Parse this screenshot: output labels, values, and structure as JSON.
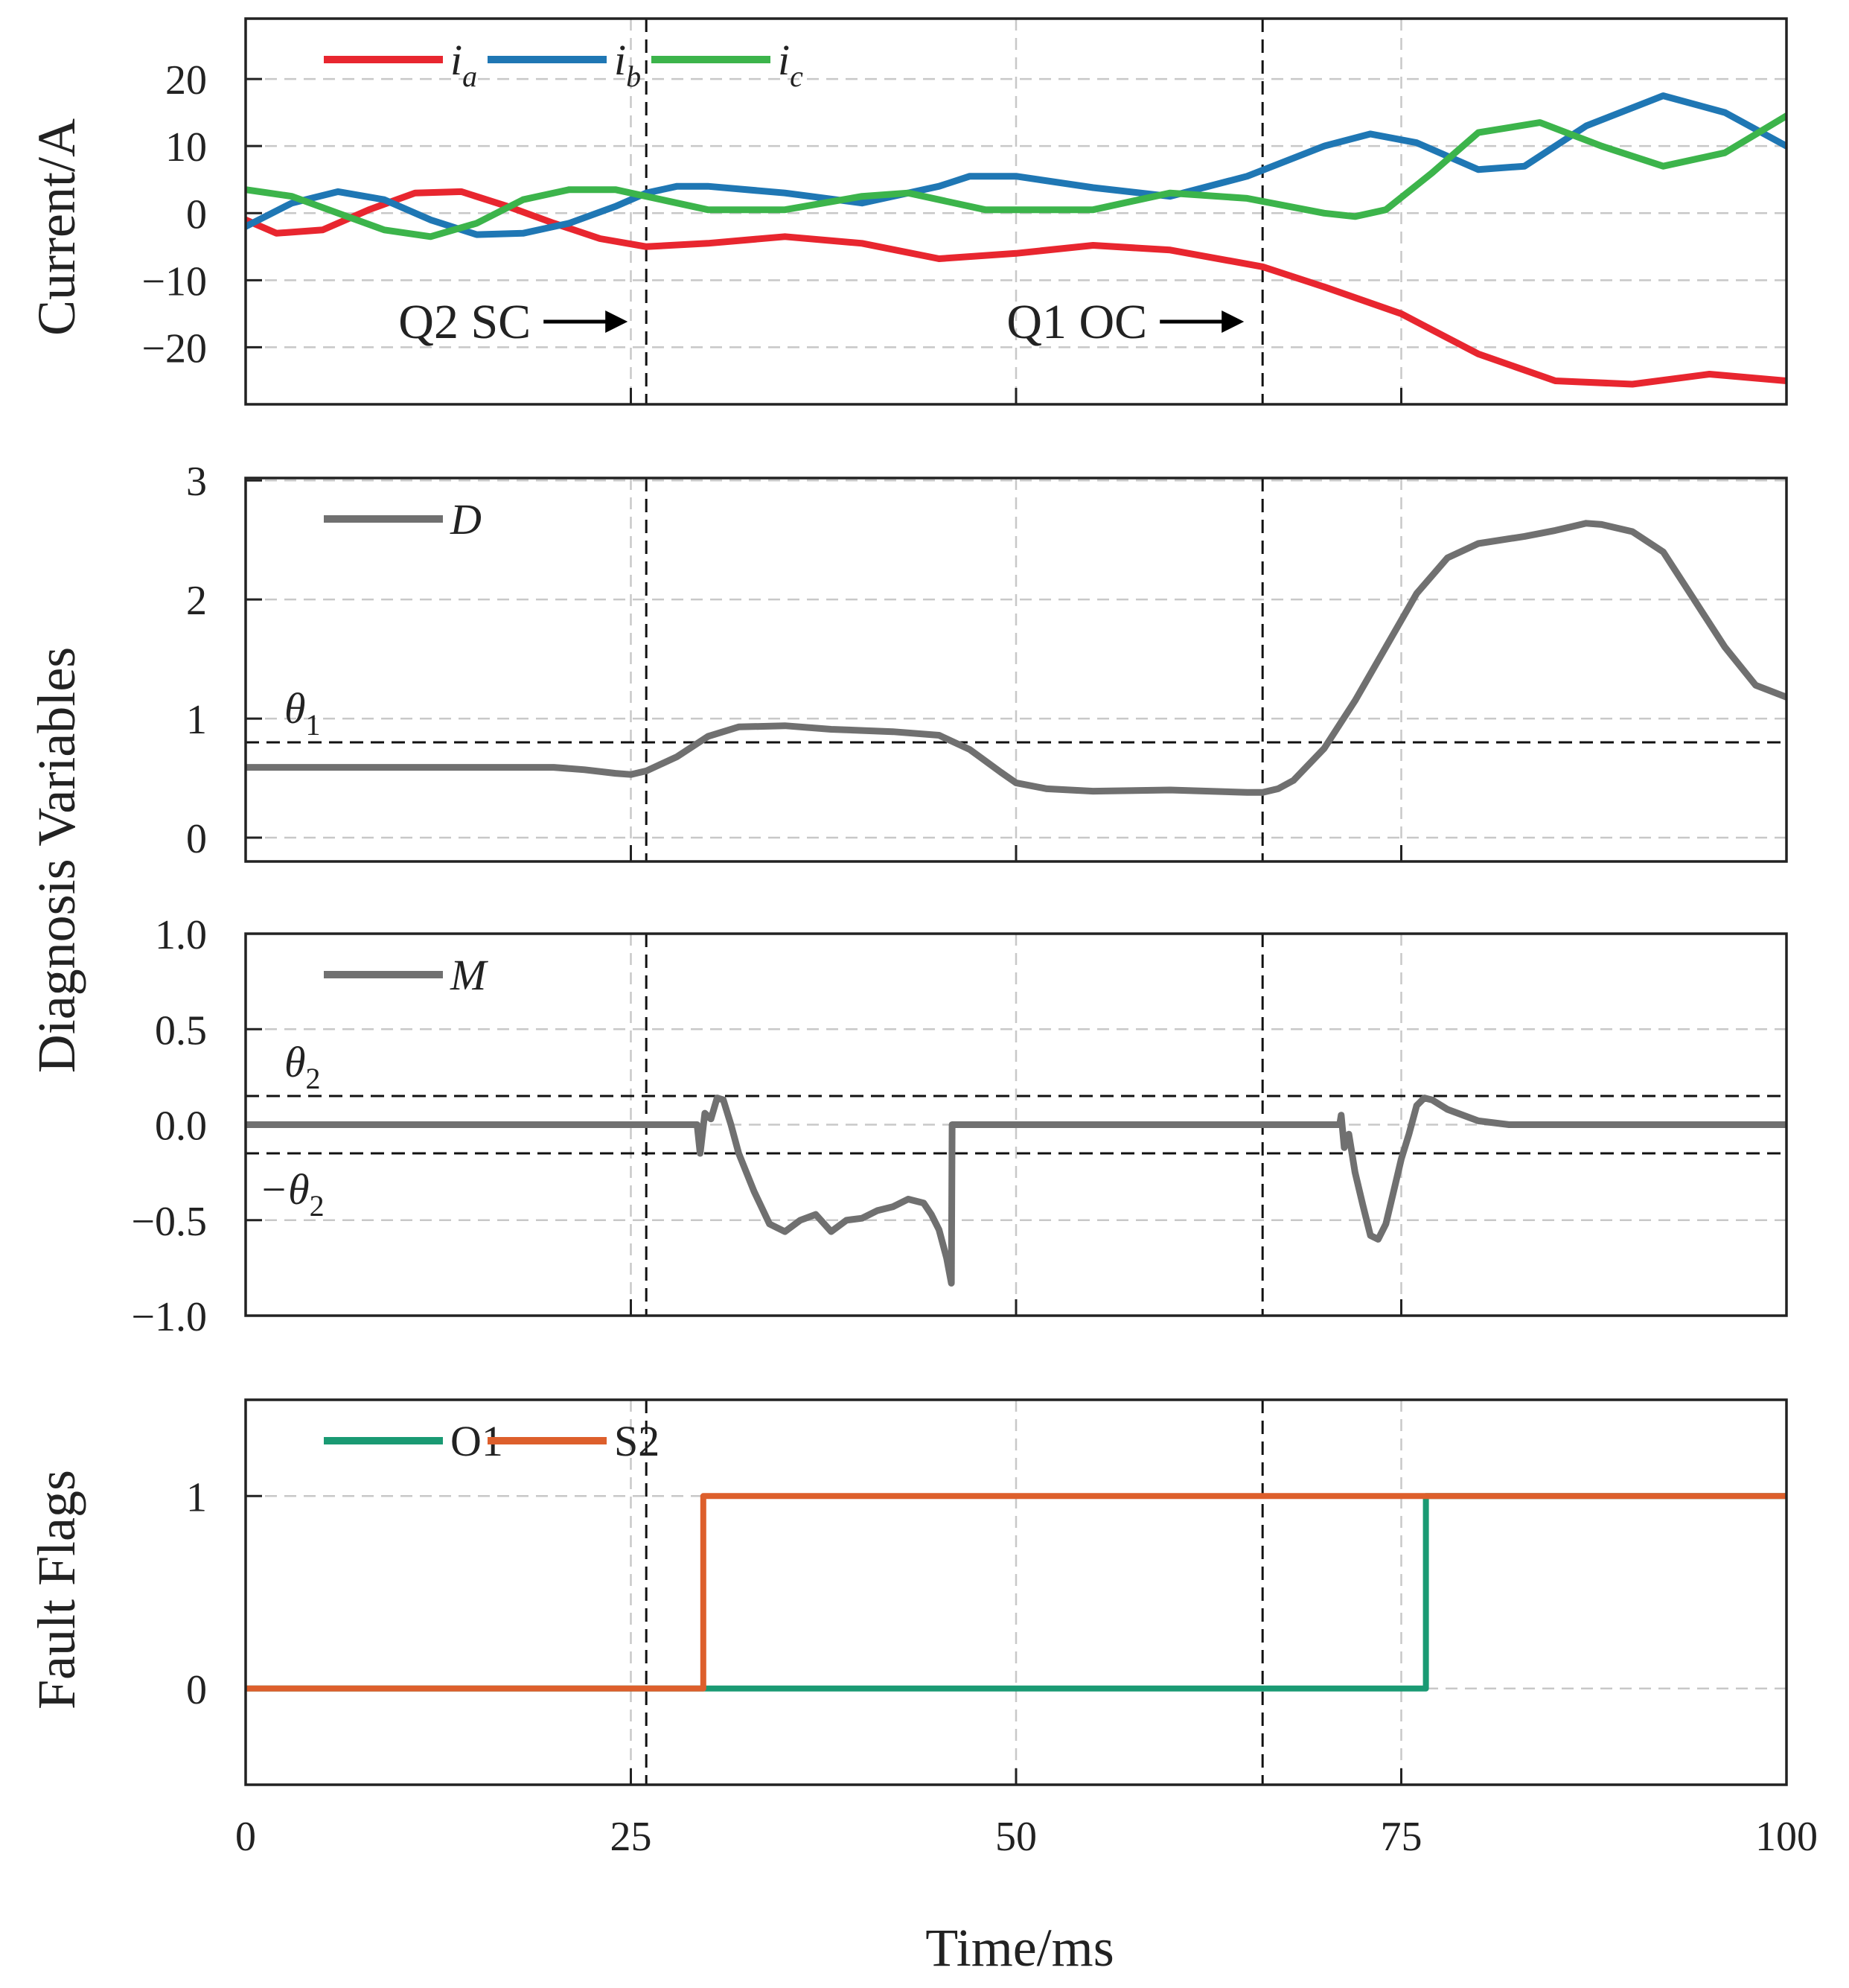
{
  "chart_data": [
    {
      "type": "line",
      "id": "current",
      "ylabel": "Current/A",
      "ylim": [
        -28.5,
        29
      ],
      "yticks": [
        20,
        10,
        0,
        -10,
        -20
      ],
      "ytick_labels": [
        "20",
        "10",
        "0",
        "−10",
        "−20"
      ],
      "series": [
        {
          "name": "i",
          "sub": "a",
          "color": "#e8262f",
          "x": [
            0,
            2,
            5,
            8,
            11,
            14,
            17,
            20,
            23,
            26,
            30,
            35,
            40,
            45,
            50,
            55,
            60,
            66,
            70,
            75,
            80,
            85,
            90,
            95,
            100
          ],
          "y": [
            -1,
            -3,
            -2.5,
            0.5,
            3,
            3.2,
            1,
            -1.5,
            -3.8,
            -5,
            -4.5,
            -3.5,
            -4.5,
            -6.8,
            -6,
            -4.8,
            -5.5,
            -8,
            -11,
            -15,
            -21,
            -25,
            -25.5,
            -24,
            -25
          ]
        },
        {
          "name": "i",
          "sub": "b",
          "color": "#1f77b4",
          "x": [
            0,
            3,
            6,
            9,
            12,
            15,
            18,
            21,
            24,
            26,
            28,
            30,
            35,
            40,
            45,
            47,
            50,
            55,
            60,
            65,
            70,
            73,
            76,
            80,
            83,
            87,
            92,
            96,
            100
          ],
          "y": [
            -2,
            1.5,
            3.2,
            2,
            -1,
            -3.2,
            -3,
            -1.5,
            1,
            3,
            4,
            4,
            3,
            1.5,
            4,
            5.5,
            5.5,
            3.8,
            2.5,
            5.5,
            10,
            11.8,
            10.5,
            6.5,
            7,
            13,
            17.5,
            15,
            10
          ]
        },
        {
          "name": "i",
          "sub": "c",
          "color": "#3cb44b",
          "x": [
            0,
            3,
            6,
            9,
            12,
            15,
            18,
            21,
            24,
            27,
            30,
            35,
            40,
            43,
            48,
            55,
            60,
            65,
            70,
            72,
            74,
            77,
            80,
            84,
            88,
            92,
            96,
            100
          ],
          "y": [
            3.5,
            2.5,
            0,
            -2.5,
            -3.5,
            -1.5,
            2,
            3.5,
            3.5,
            2,
            0.5,
            0.5,
            2.5,
            3,
            0.5,
            0.5,
            3,
            2.2,
            0,
            -0.5,
            0.5,
            6,
            12,
            13.5,
            10,
            7,
            9,
            14.5
          ]
        }
      ]
    },
    {
      "type": "line",
      "id": "d-variable",
      "ylim": [
        -0.2,
        3.02
      ],
      "yticks": [
        3,
        2,
        1,
        0
      ],
      "ytick_labels": [
        "3",
        "2",
        "1",
        "0"
      ],
      "threshold": {
        "value": 0.8,
        "label": "θ",
        "sub": "1"
      },
      "series": [
        {
          "name": "D",
          "color": "#707070",
          "x": [
            0,
            10,
            15,
            20,
            22,
            24,
            25,
            26,
            28,
            30,
            32,
            35,
            38,
            42,
            45,
            47,
            49,
            50,
            52,
            55,
            60,
            65,
            66,
            67,
            68,
            70,
            72,
            74,
            76,
            78,
            80,
            83,
            85,
            86,
            87,
            88,
            90,
            92,
            94,
            96,
            98,
            100
          ],
          "y": [
            0.59,
            0.59,
            0.59,
            0.59,
            0.57,
            0.54,
            0.53,
            0.56,
            0.68,
            0.85,
            0.93,
            0.94,
            0.91,
            0.89,
            0.86,
            0.74,
            0.55,
            0.46,
            0.41,
            0.39,
            0.4,
            0.38,
            0.38,
            0.41,
            0.48,
            0.75,
            1.15,
            1.6,
            2.05,
            2.35,
            2.47,
            2.53,
            2.58,
            2.61,
            2.64,
            2.63,
            2.57,
            2.4,
            2.0,
            1.6,
            1.28,
            1.18
          ]
        }
      ]
    },
    {
      "type": "line",
      "id": "m-variable",
      "ylim": [
        -1.0,
        1.0
      ],
      "yticks": [
        1.0,
        0.5,
        0.0,
        -0.5,
        -1.0
      ],
      "ytick_labels": [
        "1.0",
        "0.5",
        "0.0",
        "−0.5",
        "−1.0"
      ],
      "threshold": {
        "value": 0.15,
        "label": "θ",
        "sub": "2",
        "neg_label": "−θ"
      },
      "series": [
        {
          "name": "M",
          "color": "#707070",
          "x": [
            0,
            29.3,
            29.5,
            29.8,
            30.2,
            30.6,
            31,
            31.5,
            32,
            33,
            34,
            35,
            36,
            37,
            38,
            39,
            40,
            41,
            42,
            43,
            44,
            44.5,
            45,
            45.5,
            45.8,
            45.85,
            46.5,
            71,
            71.1,
            71.3,
            71.6,
            72,
            72.5,
            73,
            73.5,
            74,
            74.5,
            75,
            75.5,
            76,
            76.5,
            77,
            78,
            80,
            82,
            100
          ],
          "y": [
            0,
            0,
            -0.15,
            0.06,
            0.03,
            0.14,
            0.13,
            0,
            -0.15,
            -0.35,
            -0.52,
            -0.56,
            -0.5,
            -0.47,
            -0.56,
            -0.5,
            -0.49,
            -0.45,
            -0.43,
            -0.39,
            -0.41,
            -0.47,
            -0.55,
            -0.7,
            -0.83,
            0,
            0,
            0,
            0.05,
            -0.12,
            -0.05,
            -0.25,
            -0.42,
            -0.58,
            -0.6,
            -0.52,
            -0.35,
            -0.18,
            -0.05,
            0.1,
            0.14,
            0.13,
            0.08,
            0.02,
            0,
            0
          ]
        }
      ]
    },
    {
      "type": "line",
      "id": "fault-flags",
      "ylabel": "Fault Flags",
      "xlabel": "Time/ms",
      "xlim": [
        0,
        100
      ],
      "xticks": [
        0,
        25,
        50,
        75,
        100
      ],
      "xtick_labels": [
        "0",
        "25",
        "50",
        "75",
        "100"
      ],
      "ylim": [
        -0.5,
        1.5
      ],
      "yticks": [
        1,
        0
      ],
      "ytick_labels": [
        "1",
        "0"
      ],
      "series": [
        {
          "name": "O1",
          "color": "#1a9a73",
          "x": [
            0,
            76.6,
            76.6,
            100
          ],
          "y": [
            0,
            0,
            1,
            1
          ]
        },
        {
          "name": "S2",
          "color": "#dd5f2c",
          "x": [
            0,
            29.7,
            29.7,
            100
          ],
          "y": [
            0,
            0,
            1,
            1
          ]
        }
      ]
    }
  ],
  "shared": {
    "ylabel_middle": "Diagnosis Variables",
    "event_lines_ms": [
      26,
      66
    ],
    "grid_x_ms": [
      25,
      50,
      75
    ]
  },
  "annotations": [
    {
      "label": "Q2 SC",
      "arrow_to_ms": 26
    },
    {
      "label": "Q1 OC",
      "arrow_to_ms": 66
    }
  ]
}
